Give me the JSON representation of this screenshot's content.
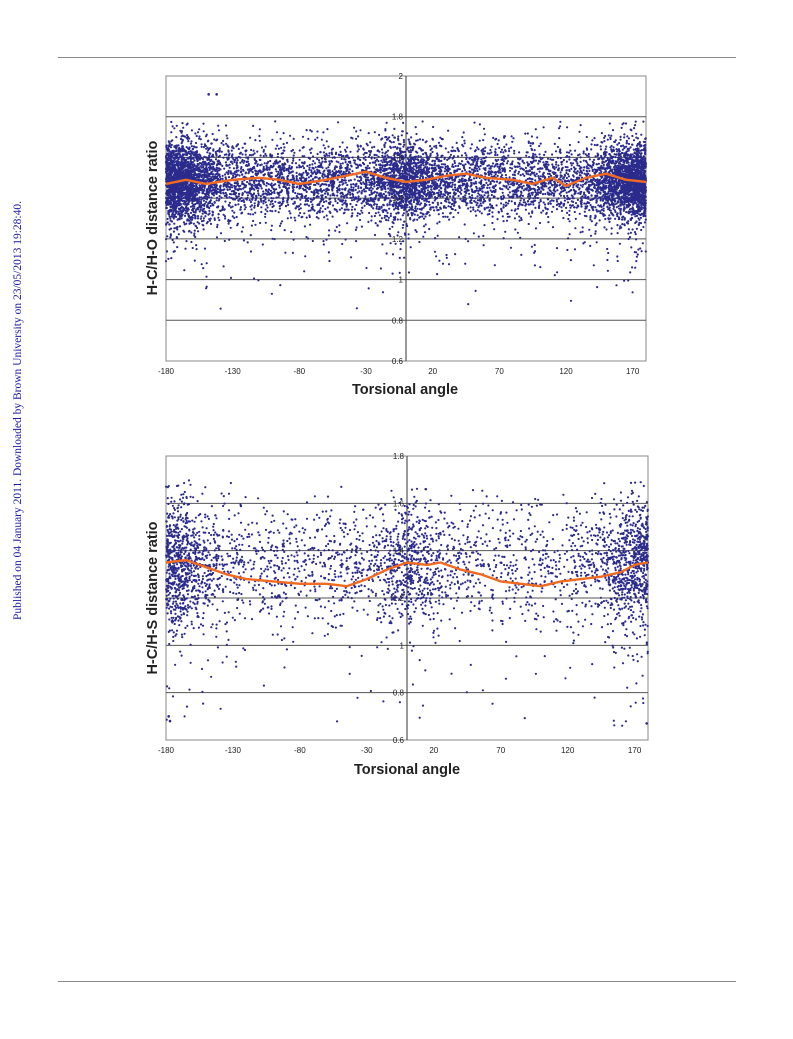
{
  "page": {
    "side_note": "Published on 04 January 2011. Downloaded by Brown University on 23/05/2013 19:28:40."
  },
  "colors": {
    "points": "#2b2b8c",
    "trend": "#f06a22",
    "grid": "#555555",
    "frame": "#888888"
  },
  "chart_data": [
    {
      "type": "scatter",
      "title": "",
      "xlabel": "Torsional angle",
      "ylabel": "H-C/H-O distance ratio",
      "xlim": [
        -180,
        180
      ],
      "ylim": [
        0.6,
        2.0
      ],
      "x_ticks": [
        -180,
        -130,
        -80,
        -30,
        20,
        70,
        120,
        170
      ],
      "y_ticks": [
        0.6,
        0.8,
        1,
        1.2,
        1.4,
        1.6,
        1.8,
        2
      ],
      "y_tick_labels": [
        "0.6",
        "0.8",
        "1",
        "1.2",
        "1.4",
        "1.6",
        "1.8",
        "2"
      ],
      "grid": "horizontal",
      "series": [
        {
          "kind": "scatter",
          "description": "dense point cloud, mostly between 1.3 and 1.65",
          "band": {
            "center": 1.48,
            "spread": 0.09,
            "min": 0.8,
            "max": 1.78
          }
        },
        {
          "kind": "line",
          "x": [
            -180,
            -165,
            -150,
            -130,
            -110,
            -95,
            -80,
            -60,
            -45,
            -30,
            -15,
            0,
            15,
            30,
            45,
            60,
            80,
            95,
            110,
            120,
            135,
            150,
            165,
            180
          ],
          "y": [
            1.47,
            1.49,
            1.47,
            1.49,
            1.5,
            1.49,
            1.47,
            1.49,
            1.51,
            1.53,
            1.5,
            1.48,
            1.49,
            1.51,
            1.52,
            1.5,
            1.49,
            1.47,
            1.5,
            1.46,
            1.5,
            1.52,
            1.49,
            1.48
          ]
        }
      ],
      "outliers": [
        {
          "x": -148,
          "y": 1.91
        },
        {
          "x": -142,
          "y": 1.91
        }
      ]
    },
    {
      "type": "scatter",
      "title": "",
      "xlabel": "Torsional angle",
      "ylabel": "H-C/H-S distance ratio",
      "xlim": [
        -180,
        180
      ],
      "ylim": [
        0.6,
        1.8
      ],
      "x_ticks": [
        -180,
        -130,
        -80,
        -30,
        20,
        70,
        120,
        170
      ],
      "y_ticks": [
        0.6,
        0.8,
        1,
        1.2,
        1.4,
        1.6,
        1.8
      ],
      "y_tick_labels": [
        "0.6",
        "0.8",
        "1",
        "1.2",
        "1.4",
        "1.6",
        "1.8"
      ],
      "grid": "horizontal",
      "series": [
        {
          "kind": "scatter",
          "description": "sparser point cloud, mostly between 1.05 and 1.6",
          "band": {
            "center": 1.34,
            "spread": 0.13,
            "min": 0.65,
            "max": 1.7
          }
        },
        {
          "kind": "line",
          "x": [
            -180,
            -165,
            -150,
            -135,
            -120,
            -100,
            -80,
            -60,
            -45,
            -30,
            -15,
            0,
            15,
            25,
            40,
            55,
            70,
            85,
            100,
            115,
            130,
            145,
            160,
            170,
            180
          ],
          "y": [
            1.35,
            1.36,
            1.33,
            1.3,
            1.28,
            1.27,
            1.26,
            1.26,
            1.25,
            1.28,
            1.32,
            1.35,
            1.34,
            1.35,
            1.32,
            1.3,
            1.27,
            1.26,
            1.25,
            1.27,
            1.28,
            1.29,
            1.31,
            1.34,
            1.35
          ]
        }
      ],
      "outliers": [
        {
          "x": -178,
          "y": 0.7
        },
        {
          "x": -177,
          "y": 0.68
        },
        {
          "x": 179,
          "y": 0.67
        },
        {
          "x": 14,
          "y": 1.66
        }
      ]
    }
  ]
}
